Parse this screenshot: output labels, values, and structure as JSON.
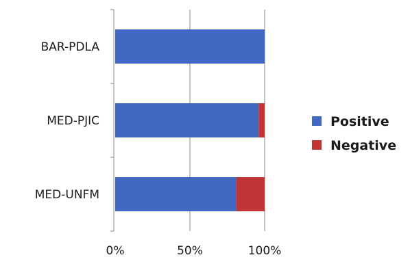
{
  "chart_data": {
    "type": "bar",
    "orientation": "horizontal",
    "stacked": "percent",
    "categories": [
      "BAR-PDLA",
      "MED-PJIC",
      "MED-UNFM"
    ],
    "series": [
      {
        "name": "Positive",
        "color": "#4169c2",
        "values": [
          100,
          96,
          81
        ]
      },
      {
        "name": "Negative",
        "color": "#c23535",
        "values": [
          0,
          4,
          19
        ]
      }
    ],
    "xlim": [
      0,
      100
    ],
    "xticks": [
      {
        "value": 0,
        "label": "0%"
      },
      {
        "value": 50,
        "label": "50%"
      },
      {
        "value": 100,
        "label": "100%"
      }
    ],
    "grid": "vertical",
    "legend_position": "right"
  }
}
